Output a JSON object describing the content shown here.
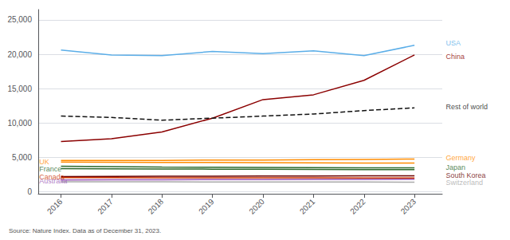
{
  "chart_data": {
    "type": "line",
    "x": [
      2016,
      2017,
      2018,
      2019,
      2020,
      2021,
      2022,
      2023
    ],
    "series": [
      {
        "name": "USA",
        "color": "#5BAEE8",
        "line_style": "solid",
        "values": [
          20600,
          19900,
          19800,
          20400,
          20100,
          20500,
          19800,
          21300
        ]
      },
      {
        "name": "China",
        "color": "#8B0000",
        "line_style": "solid",
        "values": [
          7300,
          7700,
          8700,
          10700,
          13400,
          14100,
          16200,
          19900
        ]
      },
      {
        "name": "Rest of world",
        "color": "#111111",
        "line_style": "dashed",
        "values": [
          11000,
          10800,
          10400,
          10700,
          11000,
          11300,
          11800,
          12200
        ]
      },
      {
        "name": "Germany",
        "color": "#FF8C00",
        "line_style": "solid",
        "values": [
          4550,
          4550,
          4550,
          4600,
          4600,
          4650,
          4700,
          4750
        ]
      },
      {
        "name": "UK",
        "color": "#FF8C00",
        "line_style": "solid",
        "values": [
          4300,
          4280,
          4260,
          4250,
          4230,
          4200,
          4180,
          4170
        ]
      },
      {
        "name": "Japan",
        "color": "#2D6A2D",
        "line_style": "solid",
        "values": [
          3700,
          3650,
          3600,
          3560,
          3520,
          3500,
          3480,
          3460
        ]
      },
      {
        "name": "France",
        "color": "#2D6A2D",
        "line_style": "solid",
        "values": [
          3350,
          3320,
          3300,
          3280,
          3260,
          3240,
          3220,
          3200
        ]
      },
      {
        "name": "South Korea",
        "color": "#6B0000",
        "line_style": "solid",
        "values": [
          2200,
          2220,
          2240,
          2260,
          2280,
          2290,
          2300,
          2310
        ]
      },
      {
        "name": "Canada",
        "color": "#CC3300",
        "line_style": "solid",
        "values": [
          2050,
          2040,
          2030,
          2020,
          2010,
          2010,
          2000,
          2000
        ]
      },
      {
        "name": "Switzerland",
        "color": "#AAAAAA",
        "line_style": "solid",
        "values": [
          1450,
          1440,
          1430,
          1420,
          1410,
          1400,
          1400,
          1390
        ]
      },
      {
        "name": "Australia",
        "color": "#9B59B6",
        "line_style": "solid",
        "values": [
          1700,
          1720,
          1740,
          1760,
          1770,
          1780,
          1800,
          1820
        ]
      }
    ],
    "xlim": [
      2015.55,
      2023.55
    ],
    "xticks": [
      2016,
      2017,
      2018,
      2019,
      2020,
      2021,
      2022,
      2023
    ],
    "ylim": [
      -300,
      26500
    ],
    "yticks": [
      0,
      {
        "value": 5000,
        "label": "5,000"
      },
      {
        "value": 10000,
        "label": "10,000"
      },
      {
        "value": 15000,
        "label": "15,000"
      },
      {
        "value": 20000,
        "label": "20,000"
      },
      {
        "value": 25000,
        "label": "25,000"
      }
    ],
    "grid": true,
    "annotations": [
      {
        "text": "USA",
        "x": 2023.62,
        "y": 21600,
        "color": "#5BAEE8"
      },
      {
        "text": "China",
        "x": 2023.62,
        "y": 19700,
        "color": "#8B0000"
      },
      {
        "text": "Rest of world",
        "x": 2023.62,
        "y": 12400,
        "color": "#111111"
      },
      {
        "text": "Germany",
        "x": 2023.62,
        "y": 4920,
        "color": "#FF8C00"
      },
      {
        "text": "Japan",
        "x": 2023.62,
        "y": 3580,
        "color": "#2D6A2D"
      },
      {
        "text": "South Korea",
        "x": 2023.62,
        "y": 2420,
        "color": "#6B0000"
      },
      {
        "text": "Switzerland",
        "x": 2023.62,
        "y": 1280,
        "color": "#AAAAAA"
      },
      {
        "text": "UK",
        "x": 2015.57,
        "y": 4350,
        "color": "#FF8C00"
      },
      {
        "text": "France",
        "x": 2015.57,
        "y": 3350,
        "color": "#2D6A2D"
      },
      {
        "text": "Canada",
        "x": 2015.57,
        "y": 2140,
        "color": "#CC3300"
      },
      {
        "text": "Australia",
        "x": 2015.57,
        "y": 1600,
        "color": "#9B59B6"
      }
    ],
    "caption": "Source: Nature Index. Data as of December 31, 2023."
  }
}
